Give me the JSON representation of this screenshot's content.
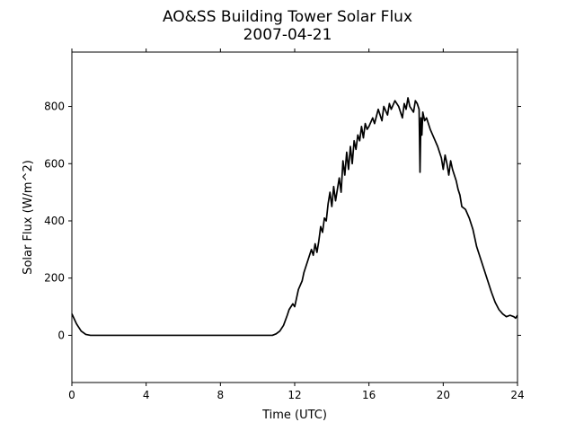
{
  "chart_data": {
    "type": "line",
    "title": "AO&SS Building Tower Solar Flux",
    "subtitle": "2007-04-21",
    "xlabel": "Time (UTC)",
    "ylabel": "Solar Flux (W/m^2)",
    "xlim": [
      0,
      24
    ],
    "ylim": [
      -165,
      990
    ],
    "xticks": [
      0,
      4,
      8,
      12,
      16,
      20,
      24
    ],
    "yticks": [
      0,
      200,
      400,
      600,
      800
    ],
    "grid": false,
    "legend": "none",
    "series": [
      {
        "color": "#000000",
        "x": [
          0,
          0.25,
          0.5,
          0.75,
          1.0,
          1.5,
          2,
          4,
          6,
          8,
          10,
          10.8,
          11.0,
          11.2,
          11.4,
          11.6,
          11.7,
          11.9,
          12.0,
          12.1,
          12.2,
          12.4,
          12.5,
          12.7,
          12.9,
          13.0,
          13.1,
          13.2,
          13.3,
          13.4,
          13.5,
          13.6,
          13.7,
          13.8,
          13.9,
          14.0,
          14.1,
          14.2,
          14.3,
          14.4,
          14.5,
          14.6,
          14.7,
          14.8,
          14.9,
          15.0,
          15.1,
          15.2,
          15.3,
          15.4,
          15.5,
          15.6,
          15.7,
          15.8,
          15.9,
          16.0,
          16.2,
          16.3,
          16.5,
          16.7,
          16.8,
          17.0,
          17.1,
          17.2,
          17.4,
          17.6,
          17.8,
          17.9,
          18.0,
          18.1,
          18.2,
          18.4,
          18.5,
          18.6,
          18.7,
          18.75,
          18.8,
          18.85,
          18.9,
          19.0,
          19.1,
          19.2,
          19.3,
          19.5,
          19.7,
          19.9,
          20.0,
          20.1,
          20.2,
          20.3,
          20.4,
          20.5,
          20.6,
          20.7,
          20.8,
          20.9,
          21.0,
          21.2,
          21.4,
          21.6,
          21.7,
          21.8,
          21.9,
          22.0,
          22.2,
          22.4,
          22.6,
          22.8,
          23.0,
          23.2,
          23.4,
          23.6,
          23.8,
          23.9,
          23.95,
          24.0
        ],
        "y": [
          75,
          40,
          15,
          3,
          0,
          0,
          0,
          0,
          0,
          0,
          0,
          0,
          5,
          15,
          35,
          70,
          90,
          110,
          100,
          130,
          160,
          190,
          220,
          260,
          300,
          280,
          320,
          290,
          330,
          380,
          360,
          410,
          400,
          460,
          500,
          450,
          520,
          470,
          510,
          550,
          500,
          610,
          560,
          640,
          580,
          660,
          600,
          680,
          650,
          700,
          680,
          730,
          690,
          740,
          720,
          730,
          760,
          740,
          790,
          750,
          800,
          770,
          810,
          790,
          820,
          800,
          760,
          810,
          790,
          830,
          800,
          780,
          820,
          810,
          790,
          570,
          760,
          700,
          780,
          750,
          760,
          740,
          720,
          690,
          660,
          620,
          580,
          630,
          600,
          560,
          610,
          580,
          560,
          540,
          510,
          490,
          450,
          440,
          410,
          370,
          340,
          310,
          290,
          270,
          230,
          190,
          150,
          115,
          90,
          75,
          65,
          70,
          65,
          60,
          65,
          70
        ]
      }
    ]
  }
}
